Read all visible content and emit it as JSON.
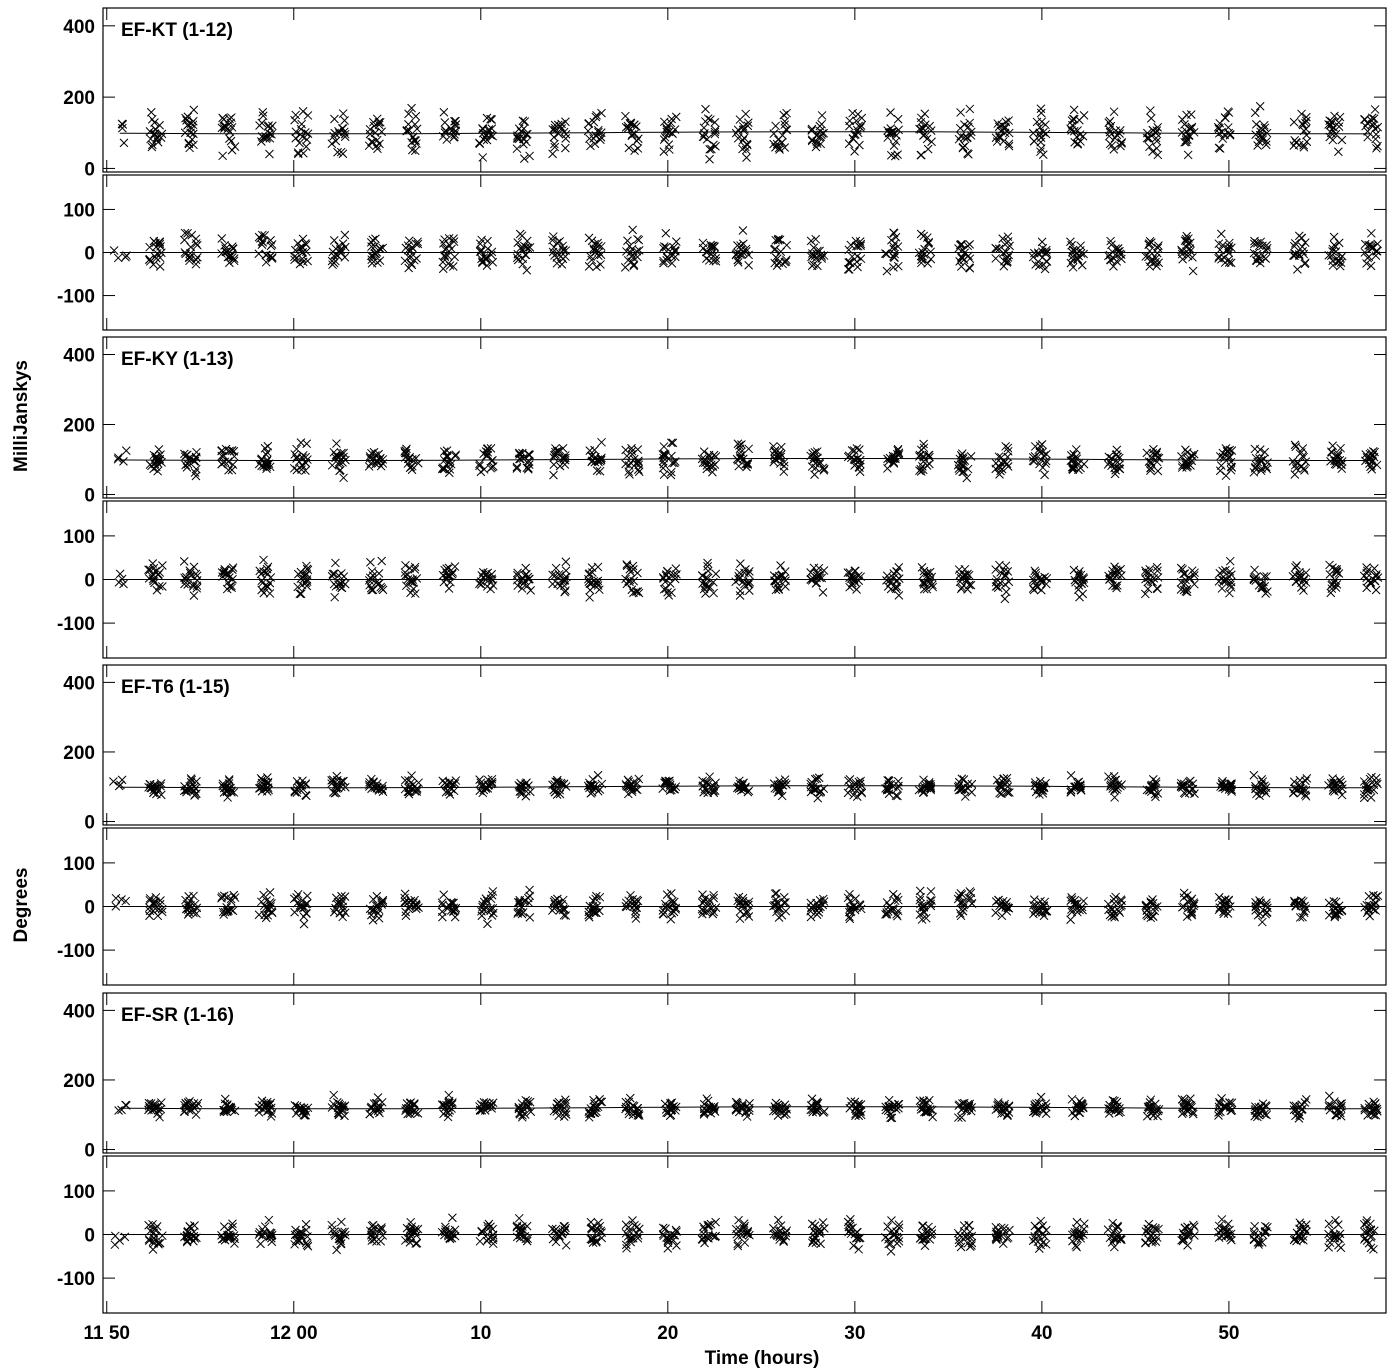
{
  "chart_data": {
    "type": "scatter",
    "ylabels": [
      "MilliJanskys",
      "Degrees"
    ],
    "xlabel": "Time (hours)",
    "x_ticks": [
      "11 50",
      "12 00",
      "10",
      "20",
      "30",
      "40",
      "50"
    ],
    "xlim_minutes": [
      709.8,
      778.4
    ],
    "scan_times_minutes": [
      710.7,
      712.6,
      714.5,
      716.5,
      718.5,
      720.4,
      722.4,
      724.4,
      726.3,
      728.3,
      730.3,
      732.3,
      734.2,
      736.1,
      738.1,
      740.1,
      742.2,
      744.0,
      746.0,
      748.0,
      750.0,
      752.0,
      753.8,
      755.9,
      757.9,
      759.9,
      761.9,
      763.9,
      765.9,
      767.8,
      769.8,
      771.7,
      773.8,
      775.7,
      777.6
    ],
    "panels": [
      {
        "name": "EF-KT (1-12)",
        "amplitude": {
          "ylim": [
            -10,
            450
          ],
          "ticks": [
            0,
            200,
            400
          ],
          "model": 100,
          "scatter": 50
        },
        "phase": {
          "ylim": [
            -180,
            180
          ],
          "ticks": [
            -100,
            0,
            100
          ],
          "model": 0,
          "scatter": 35
        }
      },
      {
        "name": "EF-KY (1-13)",
        "amplitude": {
          "ylim": [
            -10,
            450
          ],
          "ticks": [
            0,
            200,
            400
          ],
          "model": 100,
          "scatter": 35
        },
        "phase": {
          "ylim": [
            -180,
            180
          ],
          "ticks": [
            -100,
            0,
            100
          ],
          "model": 0,
          "scatter": 30
        }
      },
      {
        "name": "EF-T6 (1-15)",
        "amplitude": {
          "ylim": [
            -10,
            450
          ],
          "ticks": [
            0,
            200,
            400
          ],
          "model": 100,
          "scatter": 22
        },
        "phase": {
          "ylim": [
            -180,
            180
          ],
          "ticks": [
            -100,
            0,
            100
          ],
          "model": 0,
          "scatter": 25
        }
      },
      {
        "name": "EF-SR (1-16)",
        "amplitude": {
          "ylim": [
            -10,
            450
          ],
          "ticks": [
            0,
            200,
            400
          ],
          "model": 120,
          "scatter": 22
        },
        "phase": {
          "ylim": [
            -180,
            180
          ],
          "ticks": [
            -100,
            0,
            100
          ],
          "model": 0,
          "scatter": 25
        }
      }
    ]
  }
}
